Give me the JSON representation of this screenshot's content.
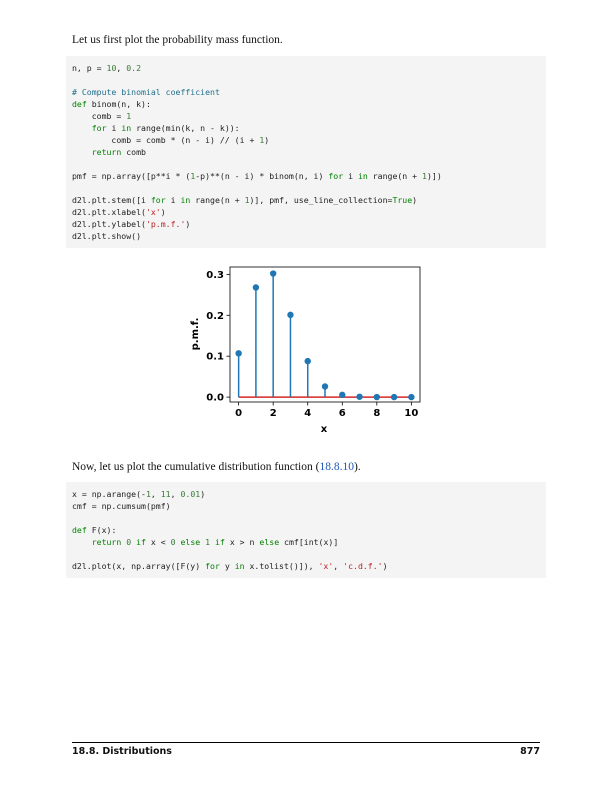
{
  "intro_text": "Let us first plot the probability mass function.",
  "code1": {
    "lines": [
      "n, p = 10, 0.2",
      "",
      "# Compute binomial coefficient",
      "def binom(n, k):",
      "    comb = 1",
      "    for i in range(min(k, n - k)):",
      "        comb = comb * (n - i) // (i + 1)",
      "    return comb",
      "",
      "pmf = np.array([p**i * (1-p)**(n - i) * binom(n, i) for i in range(n + 1)])",
      "",
      "d2l.plt.stem([i for i in range(n + 1)], pmf, use_line_collection=True)",
      "d2l.plt.xlabel('x')",
      "d2l.plt.ylabel('p.m.f.')",
      "d2l.plt.show()"
    ]
  },
  "chart_data": {
    "type": "stem",
    "x": [
      0,
      1,
      2,
      3,
      4,
      5,
      6,
      7,
      8,
      9,
      10
    ],
    "values": [
      0.107,
      0.268,
      0.302,
      0.201,
      0.088,
      0.026,
      0.0055,
      0.0008,
      0.0001,
      0.0,
      0.0
    ],
    "xlabel": "x",
    "ylabel": "p.m.f.",
    "xticks": [
      "0",
      "2",
      "4",
      "6",
      "8",
      "10"
    ],
    "yticks": [
      "0.0",
      "0.1",
      "0.2",
      "0.3"
    ],
    "xlim": [
      -0.5,
      10.5
    ],
    "ylim": [
      -0.012,
      0.318
    ],
    "grid": false,
    "colors": {
      "stem": "#1f77b4",
      "baseline": "#d62728"
    }
  },
  "para2": {
    "before": "Now, let us plot the cumulative distribution function (",
    "ref": "18.8.10",
    "after": ")."
  },
  "code2": {
    "lines": [
      "x = np.arange(-1, 11, 0.01)",
      "cmf = np.cumsum(pmf)",
      "",
      "def F(x):",
      "    return 0 if x < 0 else 1 if x > n else cmf[int(x)]",
      "",
      "d2l.plot(x, np.array([F(y) for y in x.tolist()]), 'x', 'c.d.f.')"
    ]
  },
  "footer": {
    "section": "18.8. Distributions",
    "page": "877"
  }
}
